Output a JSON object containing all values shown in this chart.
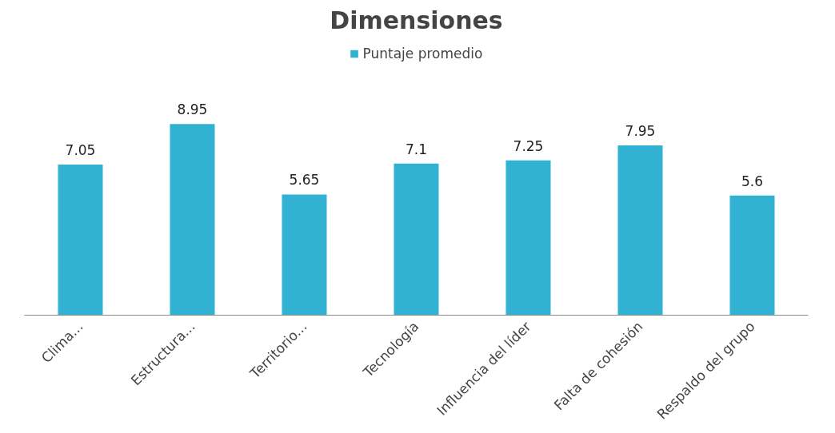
{
  "chart_data": {
    "type": "bar",
    "title": "Dimensiones",
    "categories": [
      "Clima...",
      "Estructura...",
      "Territorio...",
      "Tecnología",
      "Influencia del líder",
      "Falta de cohesión",
      "Respaldo del grupo"
    ],
    "series": [
      {
        "name": "Puntaje promedio",
        "color": "#31b2d2",
        "values": [
          7.05,
          8.95,
          5.65,
          7.1,
          7.25,
          7.95,
          5.6
        ]
      }
    ],
    "data_labels": true,
    "legend": "top",
    "grid": false
  }
}
